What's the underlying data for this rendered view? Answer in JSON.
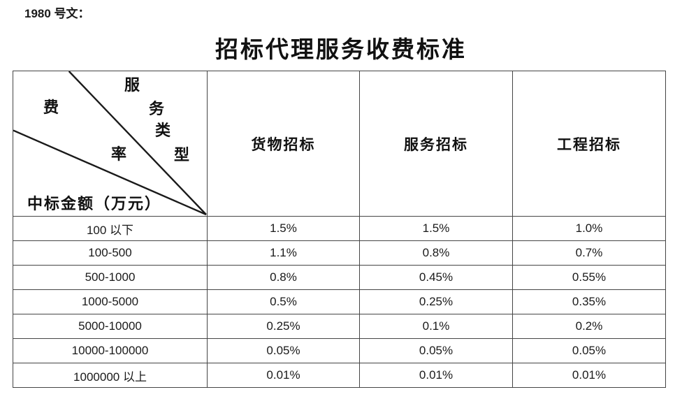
{
  "doc": {
    "label": "1980 号文："
  },
  "title": "招标代理服务收费标准",
  "table": {
    "corner": {
      "type_chars": [
        "服",
        "务",
        "类",
        "型"
      ],
      "rate_chars": [
        "费",
        "率"
      ],
      "amount_label": "中标金额（万元）"
    },
    "columns": [
      "货物招标",
      "服务招标",
      "工程招标"
    ],
    "rows": [
      {
        "range": "100 以下",
        "values": [
          "1.5%",
          "1.5%",
          "1.0%"
        ]
      },
      {
        "range": "100-500",
        "values": [
          "1.1%",
          "0.8%",
          "0.7%"
        ]
      },
      {
        "range": "500-1000",
        "values": [
          "0.8%",
          "0.45%",
          "0.55%"
        ]
      },
      {
        "range": "1000-5000",
        "values": [
          "0.5%",
          "0.25%",
          "0.35%"
        ]
      },
      {
        "range": "5000-10000",
        "values": [
          "0.25%",
          "0.1%",
          "0.2%"
        ]
      },
      {
        "range": "10000-100000",
        "values": [
          "0.05%",
          "0.05%",
          "0.05%"
        ]
      },
      {
        "range": "1000000 以上",
        "values": [
          "0.01%",
          "0.01%",
          "0.01%"
        ]
      }
    ]
  },
  "colors": {
    "text": "#1a1a1a",
    "border": "#454545",
    "header_divider": "#8c8c8c",
    "diagonal_line": "#1a1a1a",
    "background": "#ffffff"
  }
}
